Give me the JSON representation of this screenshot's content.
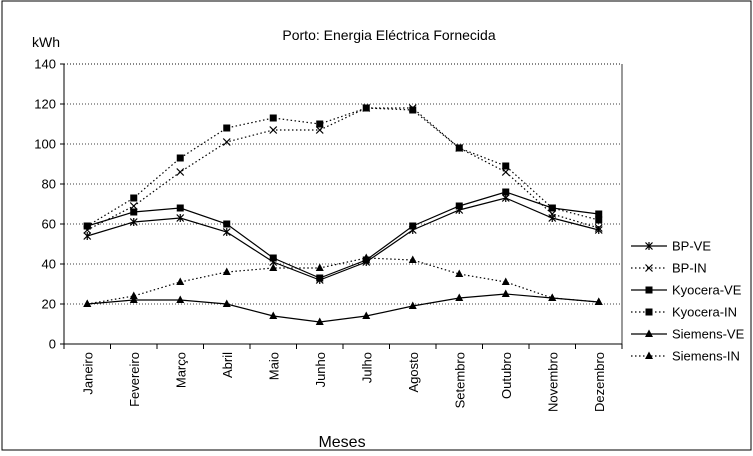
{
  "chart_data": {
    "type": "line",
    "title": "Porto: Energia Eléctrica Fornecida",
    "ylabel": "kWh",
    "xlabel": "Meses",
    "ylim": [
      0,
      140
    ],
    "yticks": [
      0,
      20,
      40,
      60,
      80,
      100,
      120,
      140
    ],
    "grid": "horizontal-dotted",
    "legend_position": "right",
    "categories": [
      "Janeiro",
      "Fevereiro",
      "Março",
      "Abril",
      "Maio",
      "Junho",
      "Julho",
      "Agosto",
      "Setembro",
      "Outubro",
      "Novembro",
      "Dezembro"
    ],
    "series": [
      {
        "name": "BP-VE",
        "marker": "asterisk",
        "dash": "solid",
        "values": [
          54,
          61,
          63,
          56,
          41,
          32,
          41,
          57,
          67,
          73,
          63,
          57
        ]
      },
      {
        "name": "BP-IN",
        "marker": "x",
        "dash": "dotted",
        "values": [
          57,
          69,
          86,
          101,
          107,
          107,
          118,
          118,
          98,
          86,
          65,
          58
        ]
      },
      {
        "name": "Kyocera-VE",
        "marker": "square",
        "dash": "solid",
        "values": [
          59,
          66,
          68,
          60,
          43,
          33,
          42,
          59,
          69,
          76,
          68,
          65
        ]
      },
      {
        "name": "Kyocera-IN",
        "marker": "square",
        "dash": "dotted",
        "values": [
          59,
          73,
          93,
          108,
          113,
          110,
          118,
          117,
          98,
          89,
          68,
          62
        ]
      },
      {
        "name": "Siemens-VE",
        "marker": "triangle",
        "dash": "solid",
        "values": [
          20,
          22,
          22,
          20,
          14,
          11,
          14,
          19,
          23,
          25,
          23,
          21
        ]
      },
      {
        "name": "Siemens-IN",
        "marker": "triangle",
        "dash": "dotted",
        "values": [
          20,
          24,
          31,
          36,
          38,
          38,
          43,
          42,
          35,
          31,
          23,
          21
        ]
      }
    ]
  }
}
